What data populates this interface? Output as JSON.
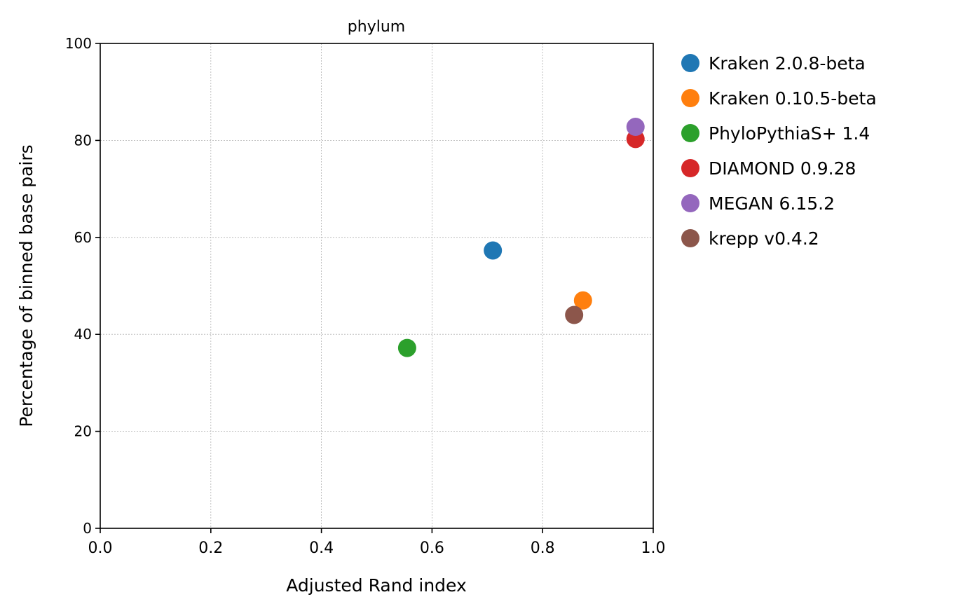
{
  "chart_data": {
    "type": "scatter",
    "title": "phylum",
    "xlabel": "Adjusted Rand index",
    "ylabel": "Percentage of binned base pairs",
    "xlim": [
      0.0,
      1.0
    ],
    "ylim": [
      0,
      100
    ],
    "xticks": [
      0.0,
      0.2,
      0.4,
      0.6,
      0.8,
      1.0
    ],
    "xtick_labels": [
      "0.0",
      "0.2",
      "0.4",
      "0.6",
      "0.8",
      "1.0"
    ],
    "yticks": [
      0,
      20,
      40,
      60,
      80,
      100
    ],
    "ytick_labels": [
      "0",
      "20",
      "40",
      "60",
      "80",
      "100"
    ],
    "grid": true,
    "legend_position": "outside-right",
    "series": [
      {
        "name": "Kraken 2.0.8-beta",
        "color": "#1f77b4",
        "x": 0.71,
        "y": 57.3
      },
      {
        "name": "Kraken 0.10.5-beta",
        "color": "#ff7f0e",
        "x": 0.873,
        "y": 47.0
      },
      {
        "name": "PhyloPythiaS+ 1.4",
        "color": "#2ca02c",
        "x": 0.555,
        "y": 37.2
      },
      {
        "name": "DIAMOND 0.9.28",
        "color": "#d62728",
        "x": 0.968,
        "y": 80.3
      },
      {
        "name": "MEGAN 6.15.2",
        "color": "#9467bd",
        "x": 0.968,
        "y": 82.8
      },
      {
        "name": "krepp v0.4.2",
        "color": "#8c564b",
        "x": 0.857,
        "y": 44.0
      }
    ]
  }
}
